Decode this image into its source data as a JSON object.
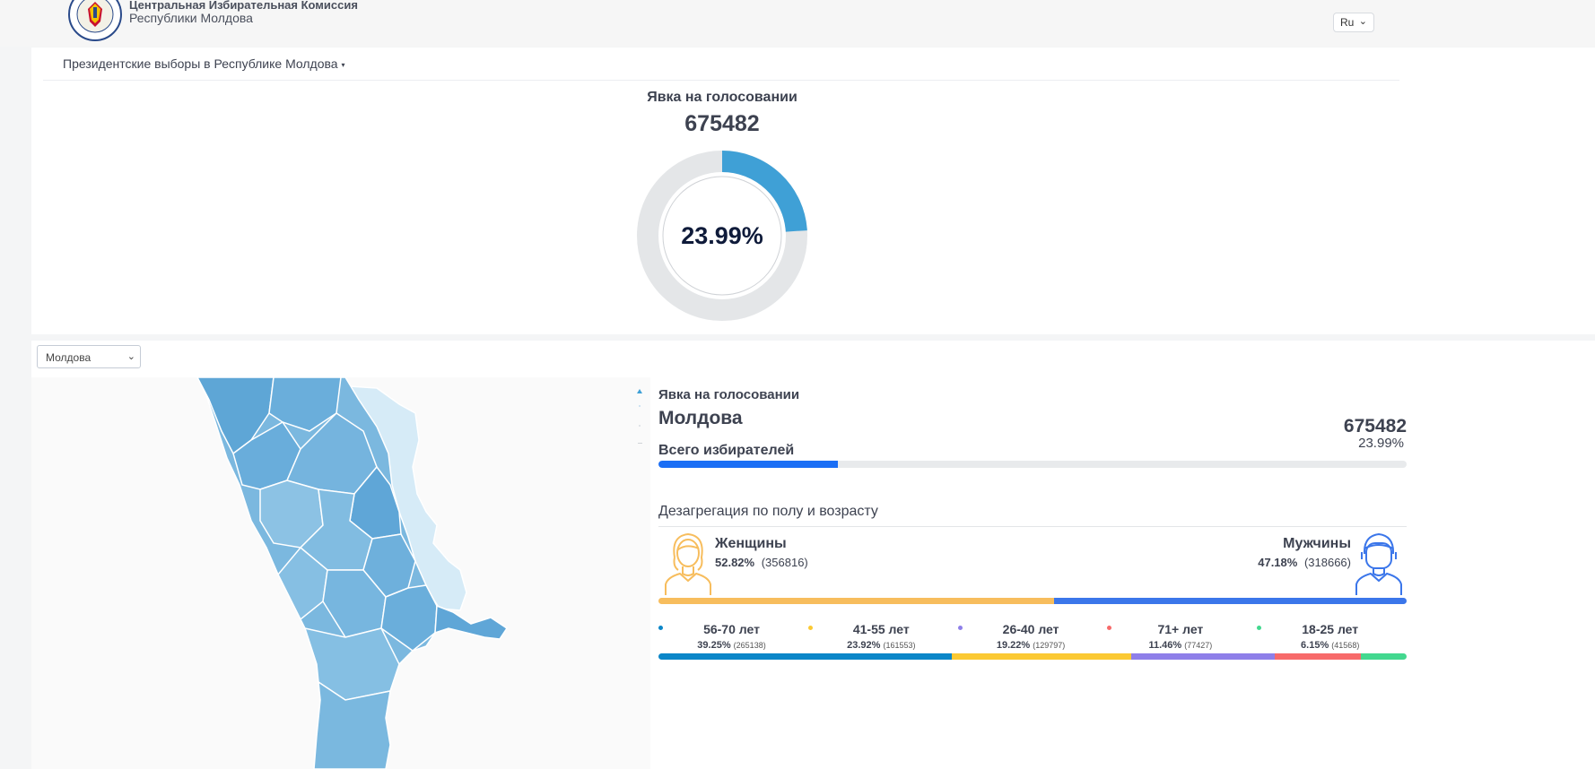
{
  "header": {
    "org_line1": "Центральная Избирательная Комиссия",
    "org_line2": "Республики Молдова",
    "language": "Ru"
  },
  "election": {
    "title": "Президентские выборы в Республике Молдова"
  },
  "turnout": {
    "title": "Явка на голосовании",
    "value": "675482",
    "percent_label": "23.99%",
    "percent": 23.99
  },
  "region_select": {
    "selected": "Молдова"
  },
  "stats": {
    "title": "Явка на голосовании",
    "region": "Молдова",
    "value": "675482",
    "percent_label": "23.99%",
    "voters_label": "Всего избирателей",
    "progress": 0.2399
  },
  "disaggregation": {
    "title": "Дезагрегация по полу и возрасту",
    "women": {
      "label": "Женщины",
      "percent": "52.82%",
      "count": "(356816)",
      "share": 52.82
    },
    "men": {
      "label": "Мужчины",
      "percent": "47.18%",
      "count": "(318666)",
      "share": 47.18
    },
    "ages": [
      {
        "label": "56-70 лет",
        "percent": "39.25%",
        "count": "(265138)",
        "share": 39.25,
        "color": "#0b86c8"
      },
      {
        "label": "41-55 лет",
        "percent": "23.92%",
        "count": "(161553)",
        "share": 23.92,
        "color": "#fbc933"
      },
      {
        "label": "26-40 лет",
        "percent": "19.22%",
        "count": "(129797)",
        "share": 19.22,
        "color": "#8e7fe9"
      },
      {
        "label": "71+ лет",
        "percent": "11.46%",
        "count": "(77427)",
        "share": 11.46,
        "color": "#f76a6a"
      },
      {
        "label": "18-25 лет",
        "percent": "6.15%",
        "count": "(41568)",
        "share": 6.15,
        "color": "#43d88f"
      }
    ]
  },
  "colors": {
    "accent": "#3fa0d6",
    "women": "#f7bd5d",
    "men": "#3b76ea",
    "voters_bar": "#1a6ef5"
  }
}
